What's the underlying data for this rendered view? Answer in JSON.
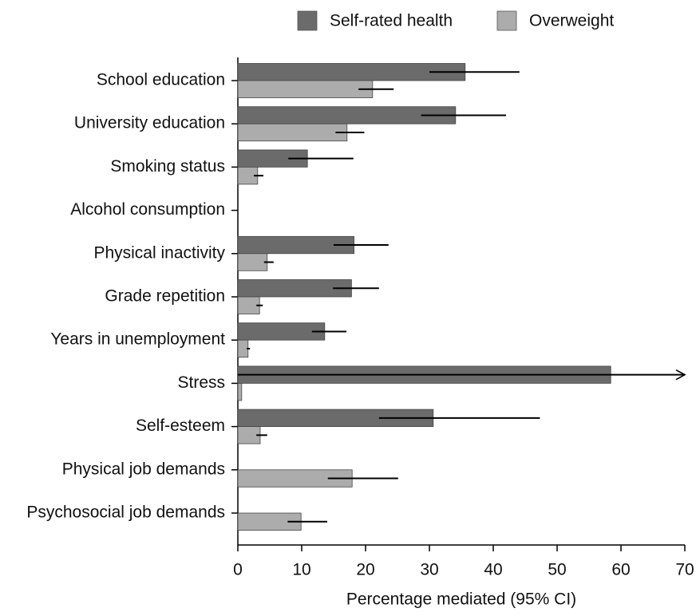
{
  "chart_data": {
    "type": "bar",
    "orientation": "horizontal",
    "categories": [
      "School education",
      "University education",
      "Smoking status",
      "Alcohol consumption",
      "Physical inactivity",
      "Grade repetition",
      "Years in unemployment",
      "Stress",
      "Self-esteem",
      "Physical job demands",
      "Psychosocial job demands"
    ],
    "series": [
      {
        "name": "Self-rated health",
        "color": "#6b6b6b",
        "values": [
          35.6,
          34.1,
          10.9,
          null,
          18.2,
          17.8,
          13.6,
          58.4,
          30.6,
          null,
          null
        ],
        "ci_low": [
          30,
          28.7,
          7.9,
          null,
          15,
          14.9,
          11.6,
          0,
          22.1,
          null,
          null
        ],
        "ci_high": [
          44.1,
          42,
          18.1,
          null,
          23.6,
          22.1,
          17,
          null,
          47.3,
          null,
          null
        ]
      },
      {
        "name": "Overweight",
        "color": "#acacac",
        "values": [
          21.1,
          17.1,
          3.1,
          null,
          4.6,
          3.4,
          1.6,
          0.6,
          3.5,
          17.9,
          9.9
        ],
        "ci_low": [
          18.9,
          15.3,
          2.5,
          null,
          4.1,
          2.9,
          1.4,
          null,
          2.9,
          14.1,
          7.8
        ],
        "ci_high": [
          24.4,
          19.8,
          4,
          null,
          5.6,
          3.9,
          1.9,
          null,
          4.6,
          25.1,
          14
        ]
      }
    ],
    "x_label": "Percentage mediated (95% CI)",
    "xlim": [
      0,
      70
    ],
    "xticks": [
      0,
      10,
      20,
      30,
      40,
      50,
      60,
      70
    ],
    "legend": "top",
    "grid": false
  }
}
